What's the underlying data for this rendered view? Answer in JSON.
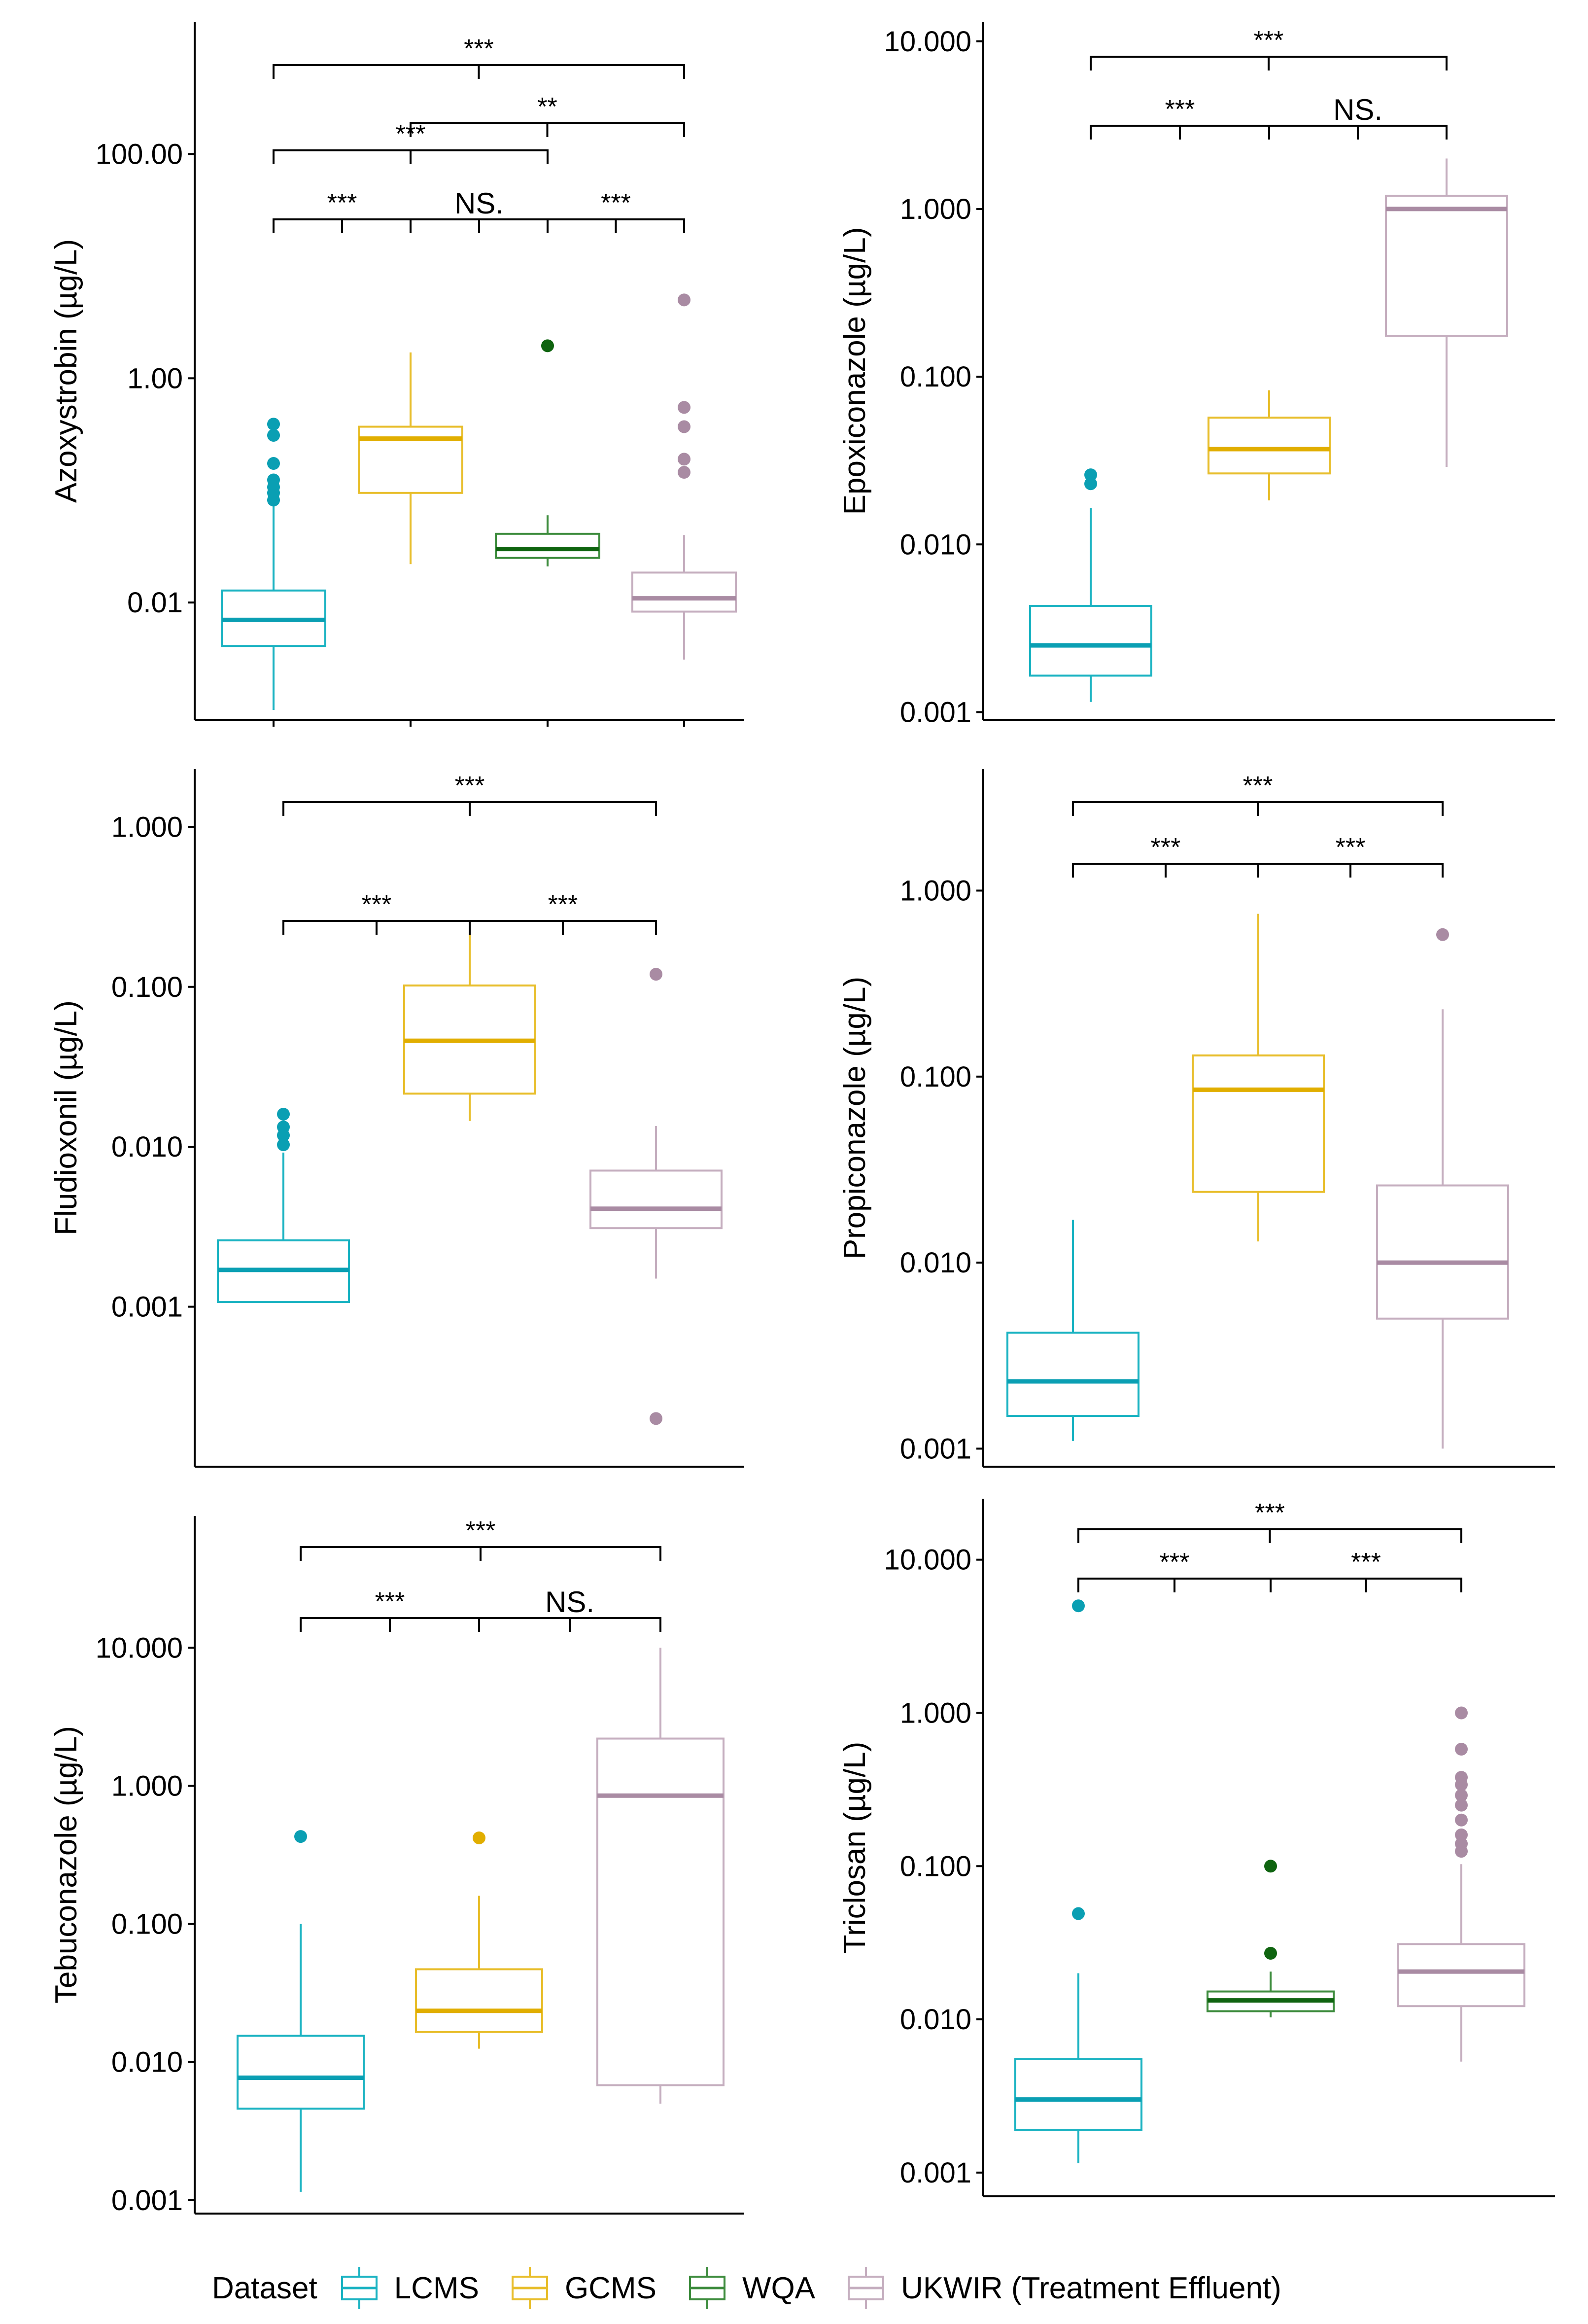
{
  "chart_data": [
    {
      "type": "boxplot",
      "ylabel": "Azoxystrobin (µg/L)",
      "yscale": "log10",
      "ylim": [
        0.0009,
        1500
      ],
      "yticks": [
        {
          "value": 100,
          "label": "100.00"
        },
        {
          "value": 1,
          "label": "1.00"
        },
        {
          "value": 0.01,
          "label": "0.01"
        }
      ],
      "groups": [
        {
          "name": "LCMS",
          "whisker_low": 0.0011,
          "q1": 0.0041,
          "median": 0.007,
          "q3": 0.0128,
          "whisker_high": 0.08,
          "outliers": [
            0.39,
            0.31,
            0.174,
            0.124,
            0.107,
            0.095,
            0.082
          ]
        },
        {
          "name": "GCMS",
          "whisker_low": 0.022,
          "q1": 0.095,
          "median": 0.29,
          "q3": 0.37,
          "whisker_high": 1.7,
          "outliers": []
        },
        {
          "name": "WQA",
          "whisker_low": 0.021,
          "q1": 0.025,
          "median": 0.03,
          "q3": 0.041,
          "whisker_high": 0.06,
          "outliers": [
            1.95
          ]
        },
        {
          "name": "UKWIR (Treatment Effluent)",
          "whisker_low": 0.0031,
          "q1": 0.0083,
          "median": 0.0109,
          "q3": 0.0185,
          "whisker_high": 0.04,
          "outliers": [
            5.0,
            0.55,
            0.37,
            0.19,
            0.145
          ]
        }
      ],
      "significance": [
        {
          "from": "LCMS",
          "to": "UKWIR (Treatment Effluent)",
          "label": "***"
        },
        {
          "from": "GCMS",
          "to": "UKWIR (Treatment Effluent)",
          "label": "**"
        },
        {
          "from": "LCMS",
          "to": "WQA",
          "label": "***"
        },
        {
          "from": "LCMS",
          "to": "GCMS",
          "label": "***"
        },
        {
          "from": "GCMS",
          "to": "WQA",
          "label": "NS."
        },
        {
          "from": "WQA",
          "to": "UKWIR (Treatment Effluent)",
          "label": "***"
        }
      ]
    },
    {
      "type": "boxplot",
      "ylabel": "Epoxiconazole (µg/L)",
      "yscale": "log10",
      "ylim": [
        0.0009,
        13
      ],
      "yticks": [
        {
          "value": 10,
          "label": "10.000"
        },
        {
          "value": 1,
          "label": "1.000"
        },
        {
          "value": 0.1,
          "label": "0.100"
        },
        {
          "value": 0.01,
          "label": "0.010"
        },
        {
          "value": 0.001,
          "label": "0.001"
        }
      ],
      "groups": [
        {
          "name": "LCMS",
          "whisker_low": 0.00115,
          "q1": 0.00165,
          "median": 0.0025,
          "q3": 0.0043,
          "whisker_high": 0.0165,
          "outliers": [
            0.026,
            0.023
          ]
        },
        {
          "name": "GCMS",
          "whisker_low": 0.0183,
          "q1": 0.0265,
          "median": 0.037,
          "q3": 0.057,
          "whisker_high": 0.083,
          "outliers": []
        },
        {
          "name": "UKWIR (Treatment Effluent)",
          "whisker_low": 0.029,
          "q1": 0.175,
          "median": 1.0,
          "q3": 1.2,
          "whisker_high": 2.0,
          "outliers": []
        }
      ],
      "significance": [
        {
          "from": "LCMS",
          "to": "UKWIR (Treatment Effluent)",
          "label": "***"
        },
        {
          "from": "LCMS",
          "to": "GCMS",
          "label": "***"
        },
        {
          "from": "GCMS",
          "to": "UKWIR (Treatment Effluent)",
          "label": "NS."
        }
      ]
    },
    {
      "type": "boxplot",
      "ylabel": "Fludioxonil (µg/L)",
      "yscale": "log10",
      "ylim": [
        0.0001,
        2.3
      ],
      "yticks": [
        {
          "value": 1,
          "label": "1.000"
        },
        {
          "value": 0.1,
          "label": "0.100"
        },
        {
          "value": 0.01,
          "label": "0.010"
        },
        {
          "value": 0.001,
          "label": "0.001"
        }
      ],
      "groups": [
        {
          "name": "LCMS",
          "whisker_low": 0.00107,
          "q1": 0.00107,
          "median": 0.0017,
          "q3": 0.0026,
          "whisker_high": 0.0092,
          "outliers": [
            0.016,
            0.0133,
            0.0118,
            0.0103
          ]
        },
        {
          "name": "GCMS",
          "whisker_low": 0.0145,
          "q1": 0.0215,
          "median": 0.046,
          "q3": 0.102,
          "whisker_high": 0.22,
          "outliers": []
        },
        {
          "name": "UKWIR (Treatment Effluent)",
          "whisker_low": 0.0015,
          "q1": 0.0031,
          "median": 0.0041,
          "q3": 0.0071,
          "whisker_high": 0.0135,
          "outliers": [
            0.12,
            0.0002
          ]
        }
      ],
      "significance": [
        {
          "from": "LCMS",
          "to": "UKWIR (Treatment Effluent)",
          "label": "***"
        },
        {
          "from": "LCMS",
          "to": "GCMS",
          "label": "***"
        },
        {
          "from": "GCMS",
          "to": "UKWIR (Treatment Effluent)",
          "label": "***"
        }
      ]
    },
    {
      "type": "boxplot",
      "ylabel": "Propiconazole (µg/L)",
      "yscale": "log10",
      "ylim": [
        0.0008,
        4.5
      ],
      "yticks": [
        {
          "value": 1,
          "label": "1.000"
        },
        {
          "value": 0.1,
          "label": "0.100"
        },
        {
          "value": 0.01,
          "label": "0.010"
        },
        {
          "value": 0.001,
          "label": "0.001"
        }
      ],
      "groups": [
        {
          "name": "LCMS",
          "whisker_low": 0.0011,
          "q1": 0.0015,
          "median": 0.0023,
          "q3": 0.0042,
          "whisker_high": 0.017,
          "outliers": []
        },
        {
          "name": "GCMS",
          "whisker_low": 0.013,
          "q1": 0.024,
          "median": 0.085,
          "q3": 0.13,
          "whisker_high": 0.75,
          "outliers": []
        },
        {
          "name": "UKWIR (Treatment Effluent)",
          "whisker_low": 0.001,
          "q1": 0.005,
          "median": 0.01,
          "q3": 0.026,
          "whisker_high": 0.23,
          "outliers": [
            0.58
          ]
        }
      ],
      "significance": [
        {
          "from": "LCMS",
          "to": "UKWIR (Treatment Effluent)",
          "label": "***"
        },
        {
          "from": "LCMS",
          "to": "GCMS",
          "label": "***"
        },
        {
          "from": "GCMS",
          "to": "UKWIR (Treatment Effluent)",
          "label": "***"
        }
      ]
    },
    {
      "type": "boxplot",
      "ylabel": "Tebuconazole (µg/L)",
      "yscale": "log10",
      "ylim": [
        0.0008,
        90
      ],
      "yticks": [
        {
          "value": 10,
          "label": "10.000"
        },
        {
          "value": 1,
          "label": "1.000"
        },
        {
          "value": 0.1,
          "label": "0.100"
        },
        {
          "value": 0.01,
          "label": "0.010"
        },
        {
          "value": 0.001,
          "label": "0.001"
        }
      ],
      "groups": [
        {
          "name": "LCMS",
          "whisker_low": 0.00115,
          "q1": 0.0046,
          "median": 0.0077,
          "q3": 0.0155,
          "whisker_high": 0.1,
          "outliers": [
            0.43
          ]
        },
        {
          "name": "GCMS",
          "whisker_low": 0.0125,
          "q1": 0.0165,
          "median": 0.0235,
          "q3": 0.047,
          "whisker_high": 0.16,
          "outliers": [
            0.42
          ]
        },
        {
          "name": "UKWIR (Treatment Effluent)",
          "whisker_low": 0.005,
          "q1": 0.0068,
          "median": 0.85,
          "q3": 2.2,
          "whisker_high": 10.0,
          "outliers": []
        }
      ],
      "significance": [
        {
          "from": "LCMS",
          "to": "UKWIR (Treatment Effluent)",
          "label": "***"
        },
        {
          "from": "LCMS",
          "to": "GCMS",
          "label": "***"
        },
        {
          "from": "GCMS",
          "to": "UKWIR (Treatment Effluent)",
          "label": "NS."
        }
      ]
    },
    {
      "type": "boxplot",
      "ylabel": "Triclosan (µg/L)",
      "yscale": "log10",
      "ylim": [
        0.0007,
        25
      ],
      "yticks": [
        {
          "value": 10,
          "label": "10.000"
        },
        {
          "value": 1,
          "label": "1.000"
        },
        {
          "value": 0.1,
          "label": "0.100"
        },
        {
          "value": 0.01,
          "label": "0.010"
        },
        {
          "value": 0.001,
          "label": "0.001"
        }
      ],
      "groups": [
        {
          "name": "LCMS",
          "whisker_low": 0.00115,
          "q1": 0.0019,
          "median": 0.003,
          "q3": 0.0055,
          "whisker_high": 0.02,
          "outliers": [
            5.0,
            0.049
          ]
        },
        {
          "name": "WQA",
          "whisker_low": 0.0103,
          "q1": 0.0113,
          "median": 0.0133,
          "q3": 0.0152,
          "whisker_high": 0.0205,
          "outliers": [
            0.1,
            0.027
          ]
        },
        {
          "name": "UKWIR (Treatment Effluent)",
          "whisker_low": 0.0053,
          "q1": 0.0122,
          "median": 0.0205,
          "q3": 0.031,
          "whisker_high": 0.103,
          "outliers": [
            1.0,
            0.58,
            0.38,
            0.34,
            0.29,
            0.25,
            0.2,
            0.16,
            0.14,
            0.125
          ]
        }
      ],
      "significance": [
        {
          "from": "LCMS",
          "to": "UKWIR (Treatment Effluent)",
          "label": "***"
        },
        {
          "from": "LCMS",
          "to": "WQA",
          "label": "***"
        },
        {
          "from": "WQA",
          "to": "UKWIR (Treatment Effluent)",
          "label": "***"
        }
      ]
    }
  ],
  "legend": {
    "title": "Dataset",
    "items": [
      {
        "label": "LCMS",
        "color": "#1BB3C2",
        "fill": "#0A9FB3"
      },
      {
        "label": "GCMS",
        "color": "#E8BE2C",
        "fill": "#E1AE00"
      },
      {
        "label": "WQA",
        "color": "#3D8C3D",
        "fill": "#0F6410"
      },
      {
        "label": "UKWIR (Treatment Effluent)",
        "color": "#C5AEBF",
        "fill": "#A98BA3"
      }
    ]
  }
}
